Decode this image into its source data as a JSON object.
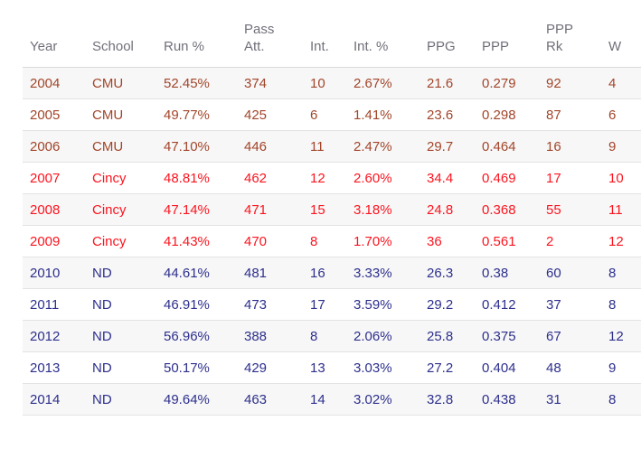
{
  "page": {
    "background": "#ffffff"
  },
  "style": {
    "header_text_color": "#70707a",
    "header_border_color": "#d8d8d8",
    "row_border_color": "#e3e3e3",
    "stripe_color": "#f7f7f7",
    "school_colors": {
      "CMU": "#a2452a",
      "Cincy": "#fb141f",
      "ND": "#2d2f8c"
    }
  },
  "chart_data": {
    "type": "table",
    "columns": [
      {
        "label": "Year",
        "wrap": false
      },
      {
        "label": "School",
        "wrap": false
      },
      {
        "label": "Run %",
        "wrap": false
      },
      {
        "label": "Pass Att.",
        "wrap": true
      },
      {
        "label": "Int.",
        "wrap": false
      },
      {
        "label": "Int. %",
        "wrap": false
      },
      {
        "label": "PPG",
        "wrap": false
      },
      {
        "label": "PPP",
        "wrap": false
      },
      {
        "label": "PPP Rk",
        "wrap": true
      },
      {
        "label": "W",
        "wrap": false
      }
    ],
    "rows": [
      {
        "school": "CMU",
        "cells": [
          "2004",
          "CMU",
          "52.45%",
          "374",
          "10",
          "2.67%",
          "21.6",
          "0.279",
          "92",
          "4"
        ]
      },
      {
        "school": "CMU",
        "cells": [
          "2005",
          "CMU",
          "49.77%",
          "425",
          "6",
          "1.41%",
          "23.6",
          "0.298",
          "87",
          "6"
        ]
      },
      {
        "school": "CMU",
        "cells": [
          "2006",
          "CMU",
          "47.10%",
          "446",
          "11",
          "2.47%",
          "29.7",
          "0.464",
          "16",
          "9"
        ]
      },
      {
        "school": "Cincy",
        "cells": [
          "2007",
          "Cincy",
          "48.81%",
          "462",
          "12",
          "2.60%",
          "34.4",
          "0.469",
          "17",
          "10"
        ]
      },
      {
        "school": "Cincy",
        "cells": [
          "2008",
          "Cincy",
          "47.14%",
          "471",
          "15",
          "3.18%",
          "24.8",
          "0.368",
          "55",
          "11"
        ]
      },
      {
        "school": "Cincy",
        "cells": [
          "2009",
          "Cincy",
          "41.43%",
          "470",
          "8",
          "1.70%",
          "36",
          "0.561",
          "2",
          "12"
        ]
      },
      {
        "school": "ND",
        "cells": [
          "2010",
          "ND",
          "44.61%",
          "481",
          "16",
          "3.33%",
          "26.3",
          "0.38",
          "60",
          "8"
        ]
      },
      {
        "school": "ND",
        "cells": [
          "2011",
          "ND",
          "46.91%",
          "473",
          "17",
          "3.59%",
          "29.2",
          "0.412",
          "37",
          "8"
        ]
      },
      {
        "school": "ND",
        "cells": [
          "2012",
          "ND",
          "56.96%",
          "388",
          "8",
          "2.06%",
          "25.8",
          "0.375",
          "67",
          "12"
        ]
      },
      {
        "school": "ND",
        "cells": [
          "2013",
          "ND",
          "50.17%",
          "429",
          "13",
          "3.03%",
          "27.2",
          "0.404",
          "48",
          "9"
        ]
      },
      {
        "school": "ND",
        "cells": [
          "2014",
          "ND",
          "49.64%",
          "463",
          "14",
          "3.02%",
          "32.8",
          "0.438",
          "31",
          "8"
        ]
      }
    ]
  }
}
